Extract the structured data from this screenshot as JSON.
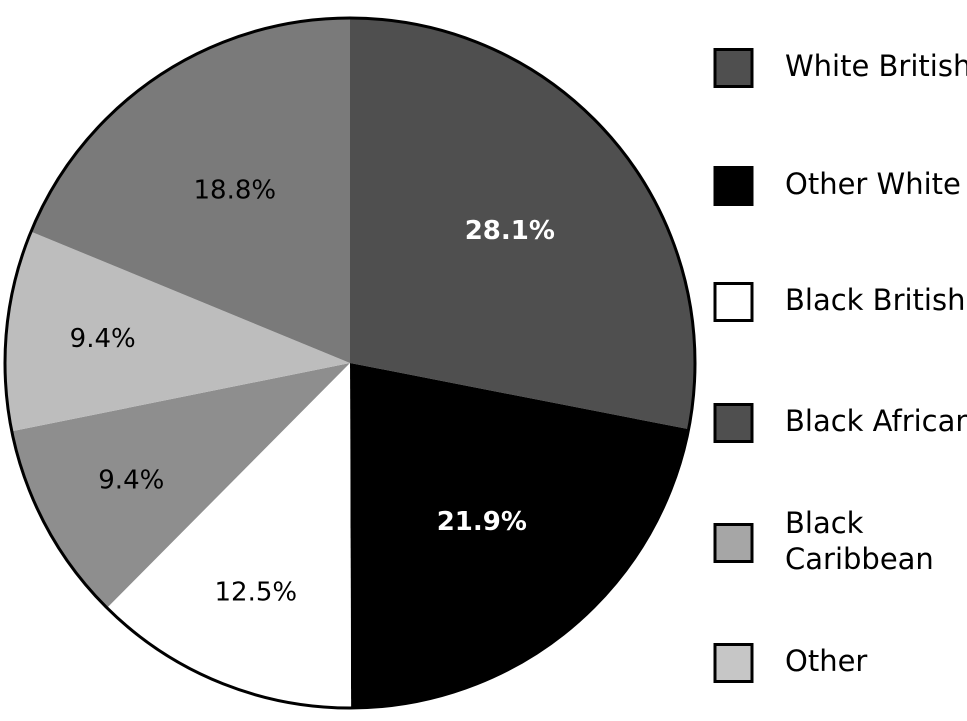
{
  "chart_data": {
    "type": "pie",
    "title": "",
    "start_angle_deg": 0,
    "direction": "clockwise",
    "slices": [
      {
        "label": "White British",
        "value": 28.1,
        "display": "28.1%",
        "color": "#4f4f4f",
        "label_color": "#ffffff",
        "label_bold": true
      },
      {
        "label": "Other White",
        "value": 21.9,
        "display": "21.9%",
        "color": "#000000",
        "label_color": "#ffffff",
        "label_bold": true
      },
      {
        "label": "Black British",
        "value": 12.5,
        "display": "12.5%",
        "color": "#ffffff",
        "label_color": "#000000",
        "label_bold": false
      },
      {
        "label": "Black African",
        "value": 9.4,
        "display": "9.4%",
        "color": "#8e8e8e",
        "label_color": "#000000",
        "label_bold": false
      },
      {
        "label": "Black Caribbean",
        "value": 9.4,
        "display": "9.4%",
        "color": "#bdbdbd",
        "label_color": "#000000",
        "label_bold": false
      },
      {
        "label": "Other",
        "value": 18.8,
        "display": "18.8%",
        "color": "#7a7a7a",
        "label_color": "#000000",
        "label_bold": false
      }
    ],
    "legend": {
      "placement": "right",
      "entries": [
        {
          "lines": [
            "White British"
          ],
          "color": "#4f4f4f"
        },
        {
          "lines": [
            "Other White"
          ],
          "color": "#000000"
        },
        {
          "lines": [
            "Black British"
          ],
          "color": "#ffffff"
        },
        {
          "lines": [
            "Black African"
          ],
          "color": "#4f4f4f"
        },
        {
          "lines": [
            "Black",
            "Caribbean"
          ],
          "color": "#a6a6a6"
        },
        {
          "lines": [
            "Other"
          ],
          "color": "#c6c6c6"
        }
      ]
    }
  }
}
